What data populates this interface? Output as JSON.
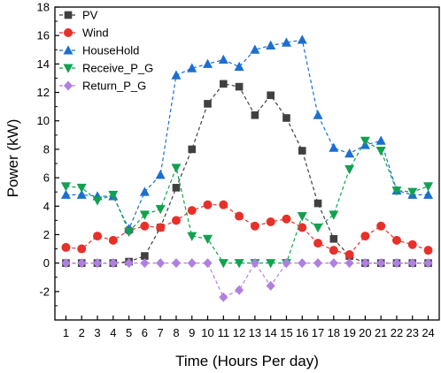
{
  "chart_data": {
    "type": "line",
    "xlabel": "Time (Hours Per day)",
    "ylabel": "Power (kW)",
    "x": [
      1,
      2,
      3,
      4,
      5,
      6,
      7,
      8,
      9,
      10,
      11,
      12,
      13,
      14,
      15,
      16,
      17,
      18,
      19,
      20,
      21,
      22,
      23,
      24
    ],
    "xlim": [
      0.3,
      24.7
    ],
    "ylim": [
      -4,
      18
    ],
    "yticks": [
      -2,
      0,
      2,
      4,
      6,
      8,
      10,
      12,
      14,
      16,
      18
    ],
    "grid": false,
    "legend_position": "top-left",
    "series": [
      {
        "name": "PV",
        "color": "#404040",
        "marker": "square",
        "values": [
          0,
          0,
          0,
          0,
          0.1,
          0.5,
          2.5,
          5.3,
          8.0,
          11.2,
          12.6,
          12.4,
          10.4,
          11.8,
          10.2,
          7.9,
          4.2,
          1.7,
          0.5,
          0,
          0,
          0,
          0,
          0
        ]
      },
      {
        "name": "Wind",
        "color": "#e8302a",
        "marker": "circle",
        "values": [
          1.1,
          1.0,
          1.9,
          1.6,
          2.3,
          2.6,
          2.5,
          3.0,
          3.7,
          4.1,
          4.1,
          3.3,
          2.6,
          2.9,
          3.1,
          2.5,
          1.4,
          0.9,
          0.6,
          1.9,
          2.6,
          1.6,
          1.3,
          0.9
        ]
      },
      {
        "name": "HouseHold",
        "color": "#1c6fd1",
        "marker": "triangle-up",
        "values": [
          4.8,
          4.8,
          4.7,
          4.7,
          2.4,
          5.0,
          6.2,
          13.2,
          13.7,
          14.0,
          14.3,
          13.8,
          15.0,
          15.3,
          15.5,
          15.7,
          10.4,
          8.1,
          7.7,
          8.3,
          8.6,
          5.1,
          4.8,
          4.8
        ]
      },
      {
        "name": "Receive_P_G",
        "color": "#12a150",
        "marker": "triangle-down",
        "values": [
          5.4,
          5.3,
          4.4,
          4.8,
          2.2,
          3.4,
          3.8,
          6.7,
          1.9,
          1.7,
          0,
          0,
          0,
          0,
          0,
          3.3,
          2.5,
          3.4,
          6.6,
          8.6,
          7.9,
          5.1,
          5.0,
          5.4
        ]
      },
      {
        "name": "Return_P_G",
        "color": "#b07fe0",
        "marker": "diamond",
        "values": [
          0,
          0,
          0,
          0,
          0,
          0,
          0,
          0,
          0,
          0,
          -2.4,
          -1.9,
          0,
          -1.6,
          0,
          0,
          0,
          0,
          0,
          0,
          0,
          0,
          0,
          0
        ]
      }
    ]
  }
}
